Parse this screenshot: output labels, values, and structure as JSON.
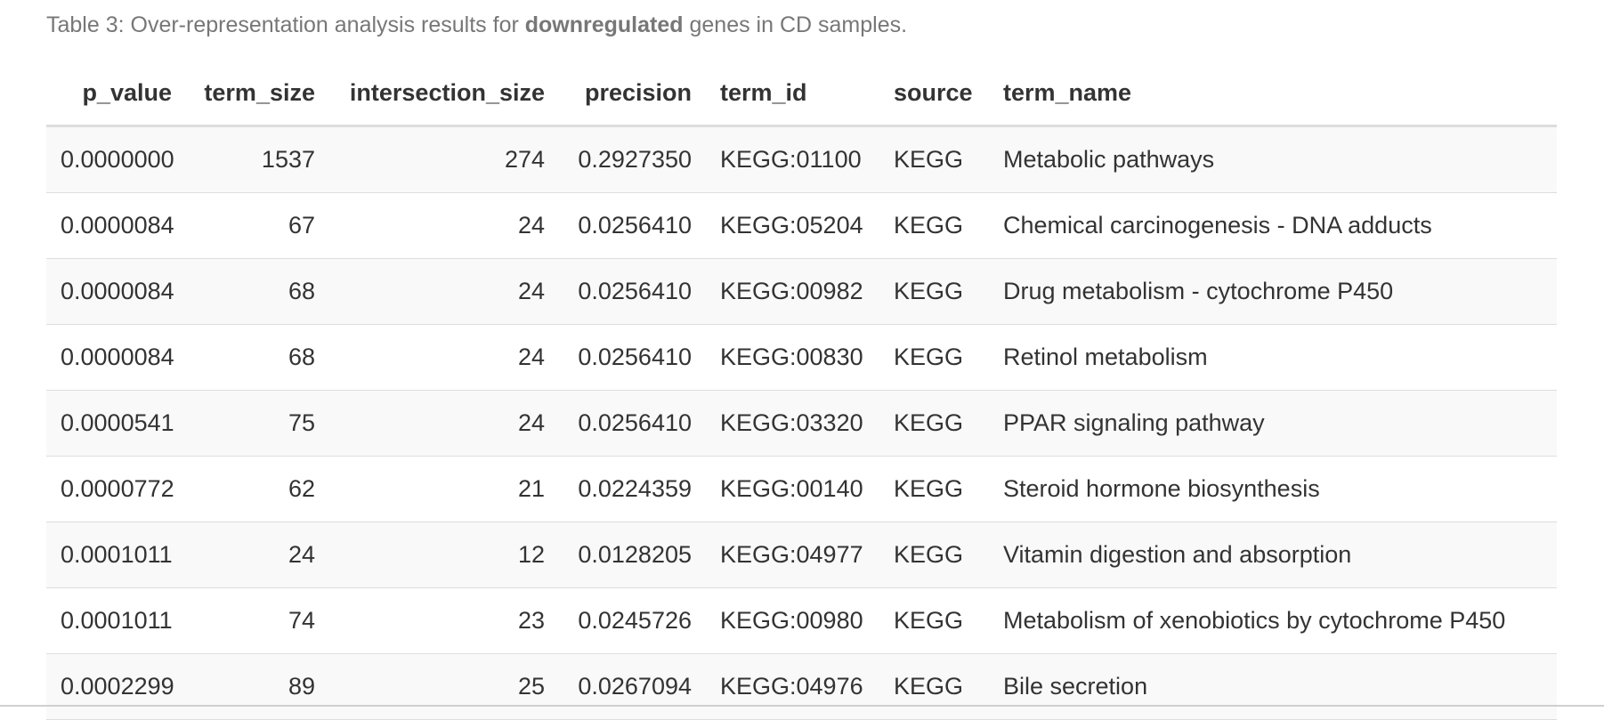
{
  "caption": {
    "prefix": "Table 3: Over-representation analysis results for ",
    "emphasis": "downregulated",
    "suffix": " genes in CD samples."
  },
  "table": {
    "columns": [
      "p_value",
      "term_size",
      "intersection_size",
      "precision",
      "term_id",
      "source",
      "term_name"
    ],
    "rows": [
      [
        "0.0000000",
        "1537",
        "274",
        "0.2927350",
        "KEGG:01100",
        "KEGG",
        "Metabolic pathways"
      ],
      [
        "0.0000084",
        "67",
        "24",
        "0.0256410",
        "KEGG:05204",
        "KEGG",
        "Chemical carcinogenesis - DNA adducts"
      ],
      [
        "0.0000084",
        "68",
        "24",
        "0.0256410",
        "KEGG:00982",
        "KEGG",
        "Drug metabolism - cytochrome P450"
      ],
      [
        "0.0000084",
        "68",
        "24",
        "0.0256410",
        "KEGG:00830",
        "KEGG",
        "Retinol metabolism"
      ],
      [
        "0.0000541",
        "75",
        "24",
        "0.0256410",
        "KEGG:03320",
        "KEGG",
        "PPAR signaling pathway"
      ],
      [
        "0.0000772",
        "62",
        "21",
        "0.0224359",
        "KEGG:00140",
        "KEGG",
        "Steroid hormone biosynthesis"
      ],
      [
        "0.0001011",
        "24",
        "12",
        "0.0128205",
        "KEGG:04977",
        "KEGG",
        "Vitamin digestion and absorption"
      ],
      [
        "0.0001011",
        "74",
        "23",
        "0.0245726",
        "KEGG:00980",
        "KEGG",
        "Metabolism of xenobiotics by cytochrome P450"
      ],
      [
        "0.0002299",
        "89",
        "25",
        "0.0267094",
        "KEGG:04976",
        "KEGG",
        "Bile secretion"
      ]
    ]
  }
}
